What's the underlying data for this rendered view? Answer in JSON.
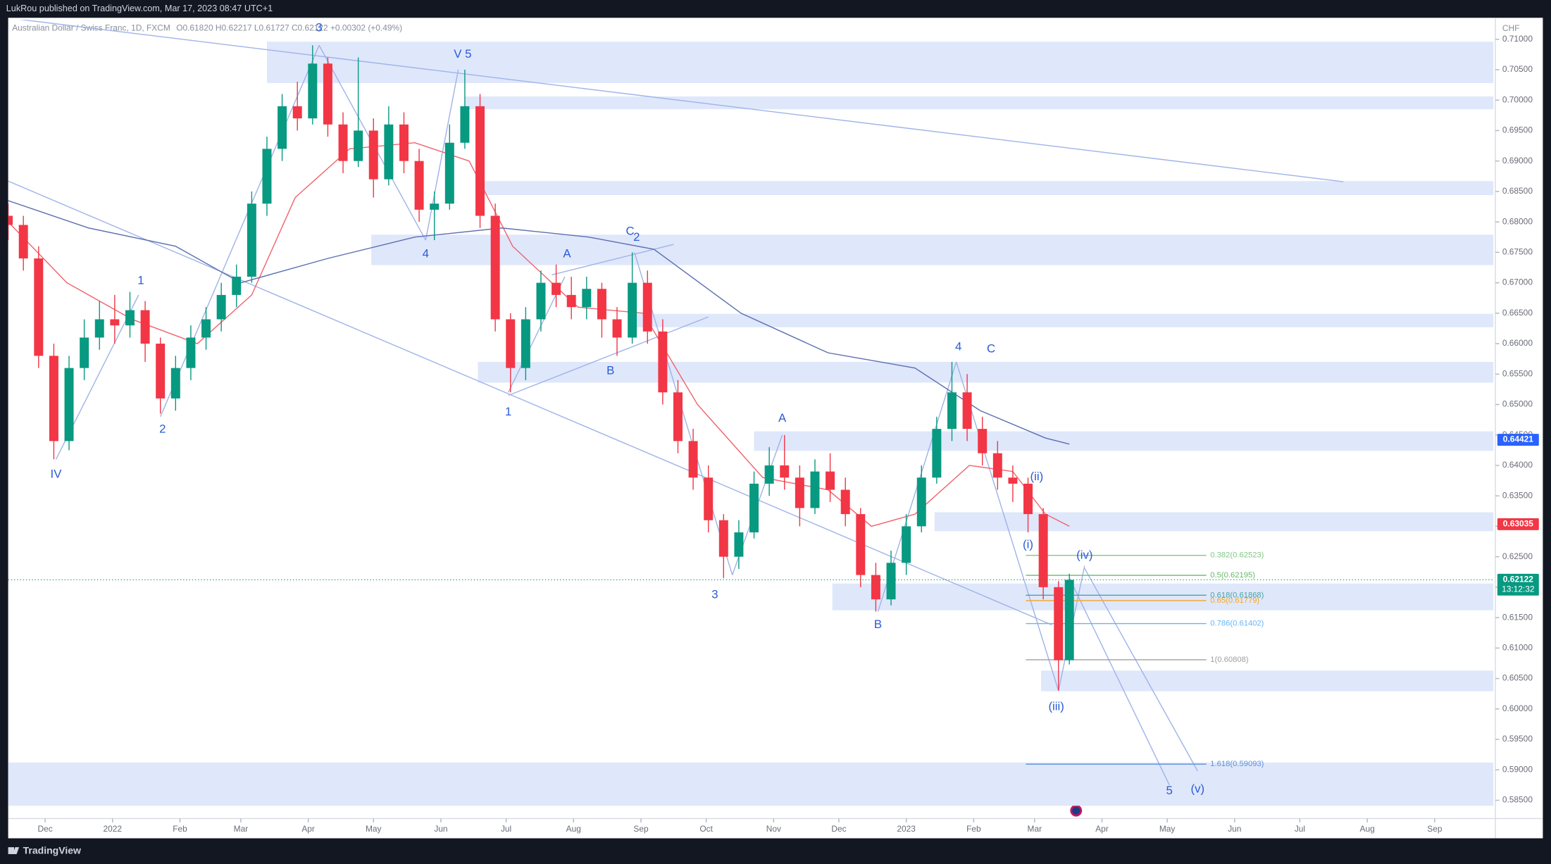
{
  "published": "LukRou published on TradingView.com, Mar 17, 2023 08:47 UTC+1",
  "brand": "TradingView",
  "chart_data": {
    "type": "candlestick",
    "title": "Australian Dollar / Swiss Franc, 1D, FXCM",
    "header": "O0.61820 H0.62217 L0.61727 C0.62122 +0.00302 (+0.49%)",
    "y_label": "CHF",
    "colors": {
      "up": "#089981",
      "down": "#f23645"
    },
    "xlim": [
      -17,
      666
    ],
    "ylim": [
      0.582,
      0.7132
    ],
    "xticks": [
      {
        "value": 0,
        "label": "Dec"
      },
      {
        "value": 31,
        "label": "2022"
      },
      {
        "value": 62,
        "label": "Feb"
      },
      {
        "value": 90,
        "label": "Mar"
      },
      {
        "value": 121,
        "label": "Apr"
      },
      {
        "value": 151,
        "label": "May"
      },
      {
        "value": 182,
        "label": "Jun"
      },
      {
        "value": 212,
        "label": "Jul"
      },
      {
        "value": 243,
        "label": "Aug"
      },
      {
        "value": 274,
        "label": "Sep"
      },
      {
        "value": 304,
        "label": "Oct"
      },
      {
        "value": 335,
        "label": "Nov"
      },
      {
        "value": 365,
        "label": "Dec"
      },
      {
        "value": 396,
        "label": "2023"
      },
      {
        "value": 427,
        "label": "Feb"
      },
      {
        "value": 455,
        "label": "Mar"
      },
      {
        "value": 486,
        "label": "Apr"
      },
      {
        "value": 516,
        "label": "May"
      },
      {
        "value": 547,
        "label": "Jun"
      },
      {
        "value": 577,
        "label": "Jul"
      },
      {
        "value": 608,
        "label": "Aug"
      },
      {
        "value": 639,
        "label": "Sep"
      }
    ],
    "yticks": [
      {
        "value": 0.585,
        "label": "0.58500"
      },
      {
        "value": 0.59,
        "label": "0.59000"
      },
      {
        "value": 0.595,
        "label": "0.59500"
      },
      {
        "value": 0.6,
        "label": "0.60000"
      },
      {
        "value": 0.605,
        "label": "0.60500"
      },
      {
        "value": 0.61,
        "label": "0.61000"
      },
      {
        "value": 0.615,
        "label": "0.61500"
      },
      {
        "value": 0.62,
        "label": "0.62000"
      },
      {
        "value": 0.625,
        "label": "0.62500"
      },
      {
        "value": 0.63,
        "label": "0.63000"
      },
      {
        "value": 0.635,
        "label": "0.63500"
      },
      {
        "value": 0.64,
        "label": "0.64000"
      },
      {
        "value": 0.645,
        "label": "0.64500"
      },
      {
        "value": 0.65,
        "label": "0.65000"
      },
      {
        "value": 0.655,
        "label": "0.65500"
      },
      {
        "value": 0.66,
        "label": "0.66000"
      },
      {
        "value": 0.665,
        "label": "0.66500"
      },
      {
        "value": 0.67,
        "label": "0.67000"
      },
      {
        "value": 0.675,
        "label": "0.67500"
      },
      {
        "value": 0.68,
        "label": "0.68000"
      },
      {
        "value": 0.685,
        "label": "0.68500"
      },
      {
        "value": 0.69,
        "label": "0.69000"
      },
      {
        "value": 0.695,
        "label": "0.69500"
      },
      {
        "value": 0.7,
        "label": "0.70000"
      },
      {
        "value": 0.705,
        "label": "0.70500"
      },
      {
        "value": 0.71,
        "label": "0.71000"
      }
    ],
    "x": [
      -17,
      -10,
      -3,
      4,
      11,
      18,
      25,
      32,
      39,
      46,
      53,
      60,
      67,
      74,
      81,
      88,
      95,
      102,
      109,
      116,
      123,
      130,
      137,
      144,
      151,
      158,
      165,
      172,
      179,
      186,
      193,
      200,
      207,
      214,
      221,
      228,
      235,
      242,
      249,
      256,
      263,
      270,
      277,
      284,
      291,
      298,
      305,
      312,
      319,
      326,
      333,
      340,
      347,
      354,
      361,
      368,
      375,
      382,
      389,
      396,
      403,
      410,
      417,
      424,
      431,
      438,
      445,
      452,
      459,
      466,
      471
    ],
    "ohlc": [
      [
        0.681,
        0.683,
        0.677,
        0.6795
      ],
      [
        0.6795,
        0.681,
        0.672,
        0.674
      ],
      [
        0.674,
        0.676,
        0.656,
        0.658
      ],
      [
        0.658,
        0.66,
        0.641,
        0.644
      ],
      [
        0.644,
        0.658,
        0.6425,
        0.656
      ],
      [
        0.656,
        0.664,
        0.654,
        0.661
      ],
      [
        0.661,
        0.667,
        0.659,
        0.664
      ],
      [
        0.664,
        0.668,
        0.66,
        0.663
      ],
      [
        0.663,
        0.6685,
        0.661,
        0.6655
      ],
      [
        0.6655,
        0.667,
        0.657,
        0.66
      ],
      [
        0.66,
        0.661,
        0.6485,
        0.651
      ],
      [
        0.651,
        0.658,
        0.649,
        0.656
      ],
      [
        0.656,
        0.663,
        0.654,
        0.661
      ],
      [
        0.661,
        0.666,
        0.659,
        0.664
      ],
      [
        0.664,
        0.67,
        0.662,
        0.668
      ],
      [
        0.668,
        0.673,
        0.666,
        0.671
      ],
      [
        0.671,
        0.685,
        0.67,
        0.683
      ],
      [
        0.683,
        0.694,
        0.681,
        0.692
      ],
      [
        0.692,
        0.701,
        0.69,
        0.699
      ],
      [
        0.699,
        0.703,
        0.695,
        0.697
      ],
      [
        0.697,
        0.709,
        0.696,
        0.706
      ],
      [
        0.706,
        0.707,
        0.694,
        0.696
      ],
      [
        0.696,
        0.698,
        0.688,
        0.69
      ],
      [
        0.69,
        0.707,
        0.689,
        0.695
      ],
      [
        0.695,
        0.697,
        0.684,
        0.687
      ],
      [
        0.687,
        0.699,
        0.686,
        0.696
      ],
      [
        0.696,
        0.698,
        0.688,
        0.69
      ],
      [
        0.69,
        0.692,
        0.68,
        0.682
      ],
      [
        0.682,
        0.685,
        0.677,
        0.683
      ],
      [
        0.683,
        0.696,
        0.682,
        0.693
      ],
      [
        0.693,
        0.705,
        0.692,
        0.699
      ],
      [
        0.699,
        0.701,
        0.679,
        0.681
      ],
      [
        0.681,
        0.683,
        0.662,
        0.664
      ],
      [
        0.664,
        0.665,
        0.652,
        0.656
      ],
      [
        0.656,
        0.666,
        0.654,
        0.664
      ],
      [
        0.664,
        0.672,
        0.662,
        0.67
      ],
      [
        0.67,
        0.673,
        0.666,
        0.668
      ],
      [
        0.668,
        0.671,
        0.664,
        0.666
      ],
      [
        0.666,
        0.671,
        0.664,
        0.669
      ],
      [
        0.669,
        0.67,
        0.661,
        0.664
      ],
      [
        0.664,
        0.666,
        0.658,
        0.661
      ],
      [
        0.661,
        0.675,
        0.66,
        0.67
      ],
      [
        0.67,
        0.672,
        0.66,
        0.662
      ],
      [
        0.662,
        0.664,
        0.65,
        0.652
      ],
      [
        0.652,
        0.654,
        0.642,
        0.644
      ],
      [
        0.644,
        0.646,
        0.636,
        0.638
      ],
      [
        0.638,
        0.64,
        0.629,
        0.631
      ],
      [
        0.631,
        0.632,
        0.6215,
        0.625
      ],
      [
        0.625,
        0.631,
        0.623,
        0.629
      ],
      [
        0.629,
        0.639,
        0.628,
        0.637
      ],
      [
        0.637,
        0.643,
        0.635,
        0.64
      ],
      [
        0.64,
        0.645,
        0.636,
        0.638
      ],
      [
        0.638,
        0.64,
        0.63,
        0.633
      ],
      [
        0.633,
        0.641,
        0.632,
        0.639
      ],
      [
        0.639,
        0.642,
        0.634,
        0.636
      ],
      [
        0.636,
        0.638,
        0.63,
        0.632
      ],
      [
        0.632,
        0.633,
        0.62,
        0.622
      ],
      [
        0.622,
        0.624,
        0.616,
        0.618
      ],
      [
        0.618,
        0.626,
        0.617,
        0.624
      ],
      [
        0.624,
        0.632,
        0.622,
        0.63
      ],
      [
        0.63,
        0.64,
        0.629,
        0.638
      ],
      [
        0.638,
        0.648,
        0.637,
        0.646
      ],
      [
        0.646,
        0.657,
        0.644,
        0.652
      ],
      [
        0.652,
        0.655,
        0.644,
        0.646
      ],
      [
        0.646,
        0.648,
        0.64,
        0.642
      ],
      [
        0.642,
        0.644,
        0.636,
        0.638
      ],
      [
        0.638,
        0.64,
        0.634,
        0.637
      ],
      [
        0.637,
        0.638,
        0.629,
        0.632
      ],
      [
        0.632,
        0.633,
        0.618,
        0.62
      ],
      [
        0.62,
        0.621,
        0.603,
        0.608
      ],
      [
        0.608,
        0.6222,
        0.6073,
        0.6212
      ]
    ],
    "moving_averages": [
      {
        "color": "#f0616b",
        "x": [
          -17,
          10,
          40,
          70,
          95,
          115,
          140,
          170,
          195,
          215,
          245,
          275,
          300,
          330,
          360,
          380,
          400,
          425,
          445,
          460,
          471
        ],
        "values": [
          0.68,
          0.67,
          0.664,
          0.66,
          0.668,
          0.684,
          0.692,
          0.693,
          0.69,
          0.676,
          0.666,
          0.665,
          0.65,
          0.638,
          0.636,
          0.63,
          0.632,
          0.64,
          0.639,
          0.632,
          0.63
        ]
      },
      {
        "color": "#5b6fb0",
        "x": [
          -17,
          20,
          60,
          90,
          130,
          170,
          210,
          250,
          280,
          320,
          360,
          400,
          430,
          460,
          471
        ],
        "values": [
          0.6835,
          0.679,
          0.676,
          0.67,
          0.674,
          0.6775,
          0.679,
          0.6775,
          0.6755,
          0.665,
          0.6585,
          0.656,
          0.649,
          0.6445,
          0.6435
        ]
      }
    ],
    "zones": {
      "color": "#dfe7fb",
      "items": [
        {
          "x": [
            102,
            666
          ],
          "y": [
            0.7028,
            0.7096
          ]
        },
        {
          "x": [
            193,
            666
          ],
          "y": [
            0.6985,
            0.7006
          ]
        },
        {
          "x": [
            198,
            666
          ],
          "y": [
            0.6844,
            0.6867
          ]
        },
        {
          "x": [
            150,
            666
          ],
          "y": [
            0.6729,
            0.6779
          ]
        },
        {
          "x": [
            270,
            666
          ],
          "y": [
            0.6627,
            0.6649
          ]
        },
        {
          "x": [
            199,
            666
          ],
          "y": [
            0.6536,
            0.657
          ]
        },
        {
          "x": [
            326,
            666
          ],
          "y": [
            0.6424,
            0.6456
          ]
        },
        {
          "x": [
            409,
            666
          ],
          "y": [
            0.6292,
            0.6323
          ]
        },
        {
          "x": [
            362,
            666
          ],
          "y": [
            0.6162,
            0.6206
          ]
        },
        {
          "x": [
            458,
            666
          ],
          "y": [
            0.6029,
            0.6063
          ]
        },
        {
          "x": [
            -17,
            666
          ],
          "y": [
            0.5841,
            0.5912
          ]
        }
      ]
    },
    "trendlines": {
      "color": "#9fb3e8",
      "items": [
        {
          "x": [
            -17,
            597
          ],
          "y": [
            0.7135,
            0.6866
          ]
        },
        {
          "x": [
            -17,
            463
          ],
          "y": [
            0.6867,
            0.6138
          ]
        },
        {
          "x": [
            213,
            305
          ],
          "y": [
            0.6515,
            0.6644
          ]
        },
        {
          "x": [
            233,
            289
          ],
          "y": [
            0.6713,
            0.6763
          ]
        },
        {
          "x": [
            5,
            43
          ],
          "y": [
            0.641,
            0.668
          ]
        },
        {
          "x": [
            53,
            126
          ],
          "y": [
            0.648,
            0.709
          ]
        },
        {
          "x": [
            126,
            175
          ],
          "y": [
            0.709,
            0.677
          ]
        },
        {
          "x": [
            175,
            190
          ],
          "y": [
            0.677,
            0.705
          ]
        },
        {
          "x": [
            213,
            239
          ],
          "y": [
            0.652,
            0.671
          ]
        },
        {
          "x": [
            271,
            316
          ],
          "y": [
            0.675,
            0.622
          ]
        },
        {
          "x": [
            316,
            339
          ],
          "y": [
            0.622,
            0.645
          ]
        },
        {
          "x": [
            383,
            419
          ],
          "y": [
            0.616,
            0.657
          ]
        },
        {
          "x": [
            419,
            466
          ],
          "y": [
            0.657,
            0.603
          ]
        },
        {
          "x": [
            466,
            478
          ],
          "y": [
            0.603,
            0.6235
          ]
        },
        {
          "x": [
            478,
            530
          ],
          "y": [
            0.6231,
            0.5898
          ]
        },
        {
          "x": [
            471,
            517
          ],
          "y": [
            0.6215,
            0.5875
          ]
        }
      ]
    },
    "fib": {
      "x": [
        451,
        534
      ],
      "items": [
        {
          "value": 0.62523,
          "label": "0.382(0.62523)",
          "color": "#81c784"
        },
        {
          "value": 0.62195,
          "label": "0.5(0.62195)",
          "color": "#66bb6a"
        },
        {
          "value": 0.61868,
          "label": "0.618(0.61868)",
          "color": "#4aa3a0"
        },
        {
          "value": 0.61779,
          "label": "0.65(0.61779)",
          "color": "#f5a623"
        },
        {
          "value": 0.61402,
          "label": "0.786(0.61402)",
          "color": "#64b5f6"
        },
        {
          "value": 0.60808,
          "label": "1(0.60808)",
          "color": "#9e9e9e"
        },
        {
          "value": 0.59093,
          "label": "1.618(0.59093)",
          "color": "#5c8fd6"
        }
      ]
    },
    "waves": {
      "color": "#2a5bd7",
      "items": [
        {
          "text": "IV",
          "x": 5,
          "y": 0.6385
        },
        {
          "text": "1",
          "x": 44,
          "y": 0.6703
        },
        {
          "text": "2",
          "x": 54,
          "y": 0.6459
        },
        {
          "text": "3",
          "x": 126,
          "y": 0.7118
        },
        {
          "text": "4",
          "x": 175,
          "y": 0.6747
        },
        {
          "text": "V 5",
          "x": 192,
          "y": 0.7075
        },
        {
          "text": "1",
          "x": 213,
          "y": 0.6487
        },
        {
          "text": "A",
          "x": 240,
          "y": 0.6747
        },
        {
          "text": "B",
          "x": 260,
          "y": 0.6555
        },
        {
          "text": "C",
          "x": 269,
          "y": 0.6784
        },
        {
          "text": "2",
          "x": 272,
          "y": 0.6774
        },
        {
          "text": "3",
          "x": 308,
          "y": 0.6187
        },
        {
          "text": "A",
          "x": 339,
          "y": 0.6477
        },
        {
          "text": "B",
          "x": 383,
          "y": 0.6138
        },
        {
          "text": "4",
          "x": 420,
          "y": 0.6594
        },
        {
          "text": "C",
          "x": 435,
          "y": 0.6591
        },
        {
          "text": "(ii)",
          "x": 456,
          "y": 0.6381
        },
        {
          "text": "(i)",
          "x": 452,
          "y": 0.6269
        },
        {
          "text": "(iv)",
          "x": 478,
          "y": 0.6252
        },
        {
          "text": "(iii)",
          "x": 465,
          "y": 0.6003
        },
        {
          "text": "5",
          "x": 517,
          "y": 0.5865
        },
        {
          "text": "(v)",
          "x": 530,
          "y": 0.5868
        }
      ]
    },
    "price_tags": [
      {
        "value": 0.64421,
        "color": "#2962ff"
      },
      {
        "value": 0.63035,
        "color": "#f23645"
      },
      {
        "value": 0.62122,
        "color": "#089981"
      }
    ],
    "countdown": "13:12:32"
  }
}
